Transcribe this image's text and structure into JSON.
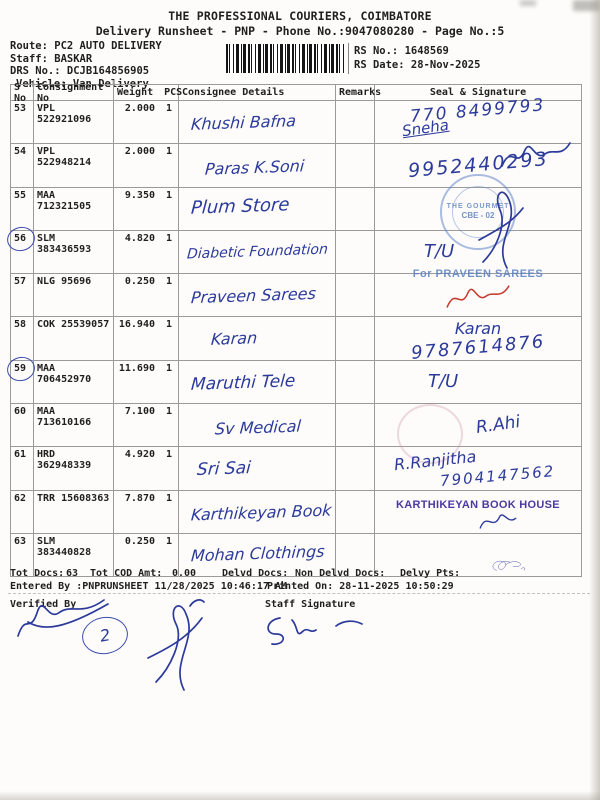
{
  "header": {
    "title": "THE PROFESSIONAL COURIERS, COIMBATORE",
    "subtitle": "Delivery Runsheet - PNP - Phone No.:9047080280 - Page No.:5",
    "route_label": "Route:",
    "route": "PC2 AUTO DELIVERY",
    "staff_label": "Staff:",
    "staff": "BASKAR",
    "drs_label": "DRS No.:",
    "drs": "DCJB164856905",
    "vehicle_label": "Vehicle:",
    "vehicle": "Van Delivery",
    "rs_no_label": "RS No.:",
    "rs_no": "1648569",
    "rs_date_label": "RS Date:",
    "rs_date": "28-Nov-2025"
  },
  "table": {
    "columns": {
      "sno": "S No",
      "consignment": "Consignment No",
      "weight": "Weight",
      "pcs": "PCS",
      "consignee": "Consignee Details",
      "remarks": "Remarks",
      "seal": "Seal & Signature"
    },
    "rows": [
      {
        "sno": "53",
        "circled": false,
        "consignment": "VPL 522921096",
        "weight": "2.000",
        "pcs": "1",
        "consignee": "Khushi Bafna",
        "remarks": "",
        "seal": [
          {
            "type": "phone",
            "text": "770 8499793"
          },
          {
            "type": "sign-name",
            "text": "Sneha"
          }
        ]
      },
      {
        "sno": "54",
        "circled": false,
        "consignment": "VPL 522948214",
        "weight": "2.000",
        "pcs": "1",
        "consignee": "Paras K.Soni",
        "remarks": "",
        "seal": [
          {
            "type": "phone",
            "text": "9952440293"
          },
          {
            "type": "squiggle",
            "variant": "flourish"
          }
        ]
      },
      {
        "sno": "55",
        "circled": false,
        "consignment": "MAA 712321505",
        "weight": "9.350",
        "pcs": "1",
        "consignee": "Plum Store",
        "remarks": "",
        "seal": [
          {
            "type": "stamp-round",
            "line1": "THE GOURMET",
            "line2": "CBE - 02"
          },
          {
            "type": "squiggle",
            "variant": "tall"
          }
        ]
      },
      {
        "sno": "56",
        "circled": true,
        "consignment": "SLM 383436593",
        "weight": "4.820",
        "pcs": "1",
        "consignee": "Diabetic Foundation",
        "remarks": "",
        "seal": [
          {
            "type": "hand",
            "text": "T/U"
          }
        ]
      },
      {
        "sno": "57",
        "circled": false,
        "consignment": "NLG 95696",
        "weight": "0.250",
        "pcs": "1",
        "consignee": "Praveen Sarees",
        "remarks": "",
        "seal": [
          {
            "type": "stamp-text",
            "text": "For PRAVEEN SAREES"
          },
          {
            "type": "squiggle-red",
            "variant": "flourish"
          }
        ]
      },
      {
        "sno": "58",
        "circled": false,
        "consignment": "COK 25539057",
        "weight": "16.940",
        "pcs": "1",
        "consignee": "Karan",
        "remarks": "",
        "seal": [
          {
            "type": "sign-name",
            "text": "Karan"
          },
          {
            "type": "phone",
            "text": "9787614876"
          }
        ]
      },
      {
        "sno": "59",
        "circled": true,
        "consignment": "MAA 706452970",
        "weight": "11.690",
        "pcs": "1",
        "consignee": "Maruthi Tele",
        "remarks": "",
        "seal": [
          {
            "type": "hand",
            "text": "T/U"
          }
        ]
      },
      {
        "sno": "60",
        "circled": false,
        "consignment": "MAA 713610166",
        "weight": "7.100",
        "pcs": "1",
        "consignee": "Sv Medical",
        "remarks": "",
        "seal": [
          {
            "type": "stamp-faint"
          },
          {
            "type": "sign-name",
            "text": "R.Ahi"
          }
        ]
      },
      {
        "sno": "61",
        "circled": false,
        "consignment": "HRD 362948339",
        "weight": "4.920",
        "pcs": "1",
        "consignee": "Sri Sai",
        "remarks": "",
        "seal": [
          {
            "type": "sign-name",
            "text": "R.Ranjitha"
          },
          {
            "type": "phone",
            "text": "7904147562"
          }
        ]
      },
      {
        "sno": "62",
        "circled": false,
        "consignment": "TRR 15608363",
        "weight": "7.870",
        "pcs": "1",
        "consignee": "Karthikeyan Book",
        "remarks": "",
        "seal": [
          {
            "type": "stamp-purple",
            "text": "KARTHIKEYAN BOOK HOUSE"
          },
          {
            "type": "squiggle",
            "variant": "small"
          }
        ]
      },
      {
        "sno": "63",
        "circled": false,
        "consignment": "SLM 383440828",
        "weight": "0.250",
        "pcs": "1",
        "consignee": "Mohan Clothings",
        "remarks": "",
        "seal": [
          {
            "type": "squiggle",
            "variant": "big"
          }
        ]
      }
    ]
  },
  "totals": {
    "tot_docs_label": "Tot Docs:",
    "tot_docs": "63",
    "cod_label": "Tot COD Amt:",
    "cod": "0.00",
    "delvd_label": "Delvd Docs:",
    "delvd": "",
    "non_delvd_label": "Non Delvd Docs:",
    "non_delvd": "",
    "delvy_pts_label": "Delvy Pts:",
    "delvy_pts": ""
  },
  "footer": {
    "entered_by": "Entered By :PNPRUNSHEET 11/28/2025 10:46:17 AM",
    "printed_on": "Printed On: 28-11-2025 10:50:29",
    "verified_by_label": "Verified By",
    "staff_signature_label": "Staff Signature",
    "annotation_circle": "2"
  },
  "ink_colors": {
    "pen_blue": "#2b3a9b",
    "pen_red": "#c43a2e",
    "stamp_blue": "#5a7fc0",
    "stamp_purple": "#4a3a9e"
  }
}
